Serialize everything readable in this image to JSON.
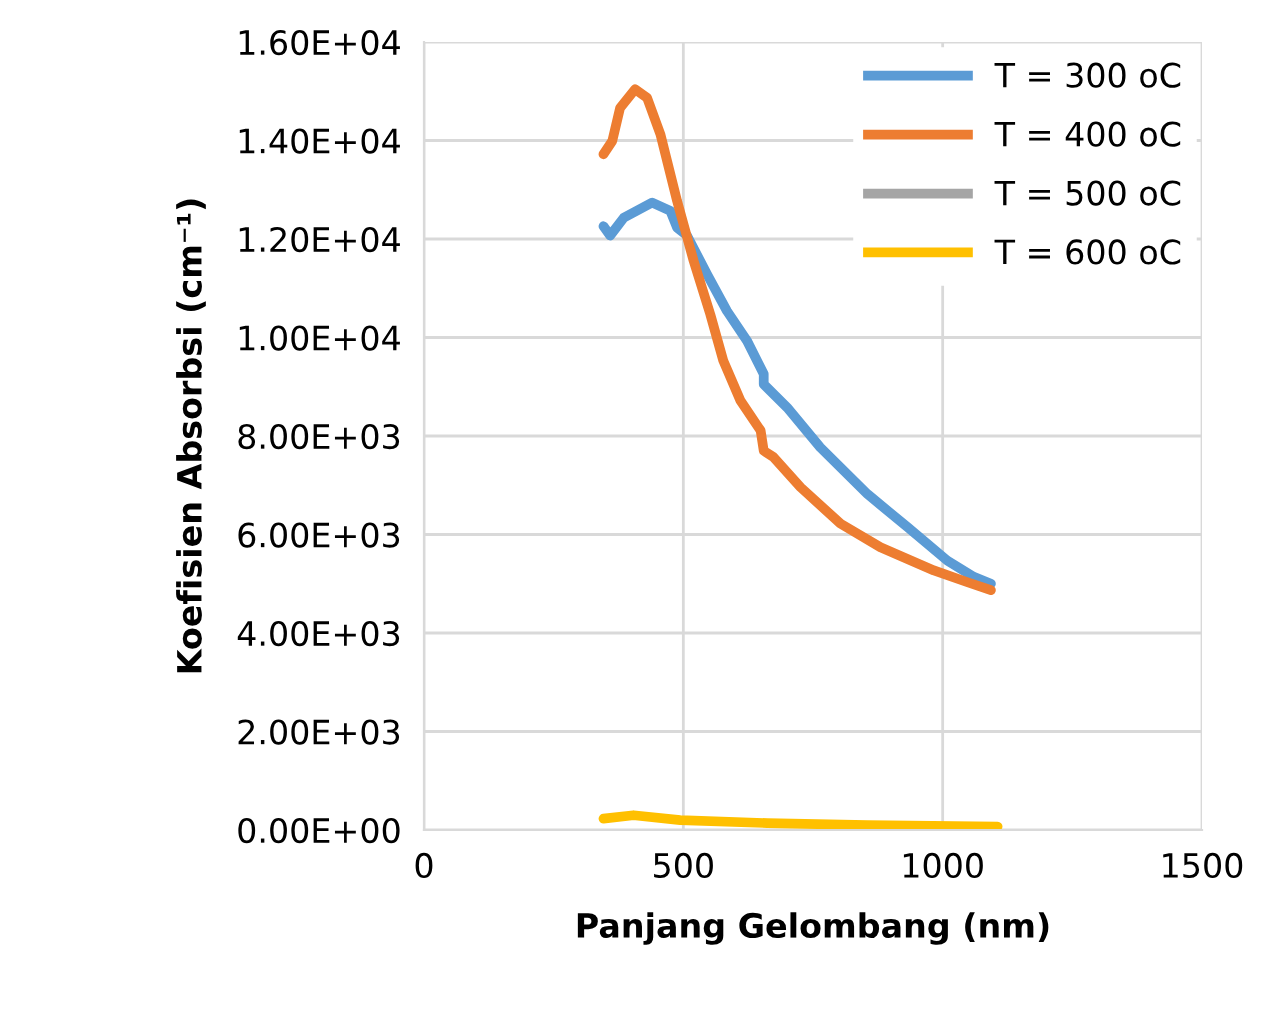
{
  "chart_data": {
    "type": "line",
    "xlabel": "Panjang Gelombang (nm)",
    "ylabel": "Koefisien Absorbsi (cm⁻¹)",
    "xlim": [
      0,
      1500
    ],
    "xticks": [
      0,
      500,
      1000,
      1500
    ],
    "ylim": [
      0,
      16000
    ],
    "yticks": [
      {
        "value": 0,
        "label": "0.00E+00"
      },
      {
        "value": 2000,
        "label": "2.00E+03"
      },
      {
        "value": 4000,
        "label": "4.00E+03"
      },
      {
        "value": 6000,
        "label": "6.00E+03"
      },
      {
        "value": 8000,
        "label": "8.00E+03"
      },
      {
        "value": 10000,
        "label": "1.00E+04"
      },
      {
        "value": 12000,
        "label": "1.20E+04"
      },
      {
        "value": 14000,
        "label": "1.40E+04"
      },
      {
        "value": 16000,
        "label": "1.60E+04"
      }
    ],
    "grid": true,
    "legend": "top right",
    "marker": "none",
    "line_style": "solid",
    "series": [
      {
        "name": "T = 300 oC",
        "color": "#5b9bd5",
        "x": [
          346,
          359,
          385,
          440,
          475,
          488,
          507,
          546,
          584,
          623,
          655,
          655,
          700,
          764,
          855,
          932,
          1009,
          1060,
          1093
        ],
        "values": [
          12260,
          12070,
          12430,
          12740,
          12570,
          12230,
          12070,
          11280,
          10540,
          9930,
          9260,
          9050,
          8580,
          7770,
          6820,
          6150,
          5470,
          5140,
          5000
        ]
      },
      {
        "name": "T = 400 oC",
        "color": "#ed7d31",
        "x": [
          346,
          363,
          378,
          407,
          430,
          456,
          488,
          520,
          552,
          577,
          610,
          649,
          655,
          674,
          726,
          803,
          880,
          983,
          1048,
          1093
        ],
        "values": [
          13720,
          13990,
          14660,
          15040,
          14870,
          14120,
          12770,
          11550,
          10470,
          9530,
          8720,
          8110,
          7700,
          7570,
          6960,
          6220,
          5740,
          5270,
          5030,
          4870
        ]
      },
      {
        "name": "T = 500 oC",
        "color": "#a5a5a5"
      },
      {
        "name": "T = 600 oC",
        "color": "#ffc000",
        "x": [
          346,
          404,
          494,
          662,
          855,
          1106
        ],
        "values": [
          230,
          300,
          200,
          140,
          100,
          70
        ]
      }
    ]
  }
}
